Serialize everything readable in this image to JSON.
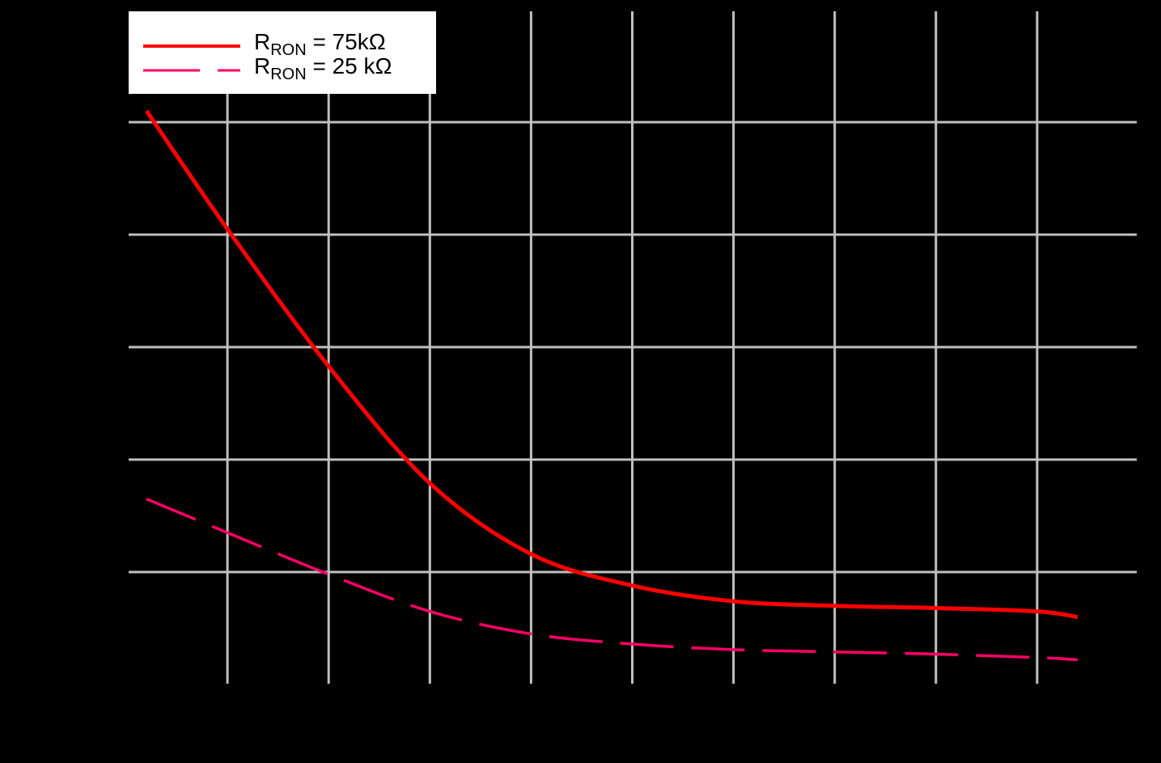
{
  "chart_data": {
    "type": "line",
    "title": "",
    "xlabel": "",
    "ylabel": "",
    "x_tick_labels": [],
    "y_tick_labels": [],
    "units_note": "No axis tick labels are visible; values are in grid-division units (x: 0-10 divisions, y: 0-6 divisions).",
    "xlim": [
      0,
      10
    ],
    "ylim": [
      0,
      6
    ],
    "grid": true,
    "legend_position": "upper left",
    "background": "#000000",
    "grid_color": "#c0c0c0",
    "series": [
      {
        "name": "R_RON = 75kΩ",
        "style": "solid",
        "color": "#ff0000",
        "x": [
          0.2,
          1.0,
          2.0,
          3.0,
          4.0,
          5.0,
          6.0,
          7.0,
          8.0,
          9.0,
          9.4
        ],
        "y": [
          5.1,
          4.05,
          2.83,
          1.79,
          1.16,
          0.88,
          0.74,
          0.7,
          0.68,
          0.65,
          0.6
        ]
      },
      {
        "name": "R_RON = 25 kΩ",
        "style": "dashed",
        "color": "#ff0066",
        "x": [
          0.2,
          1.0,
          2.0,
          3.0,
          4.0,
          5.0,
          6.0,
          7.0,
          8.0,
          9.0,
          9.4
        ],
        "y": [
          1.65,
          1.35,
          0.98,
          0.65,
          0.45,
          0.36,
          0.31,
          0.29,
          0.27,
          0.24,
          0.22
        ]
      }
    ]
  },
  "legend": {
    "items": [
      {
        "prefix": "R",
        "sub": "RON",
        "suffix": " = 75kΩ",
        "color": "#ff0000",
        "style": "solid"
      },
      {
        "prefix": "R",
        "sub": "RON",
        "suffix": " = 25 kΩ",
        "color": "#ff0066",
        "style": "dashed"
      }
    ]
  }
}
